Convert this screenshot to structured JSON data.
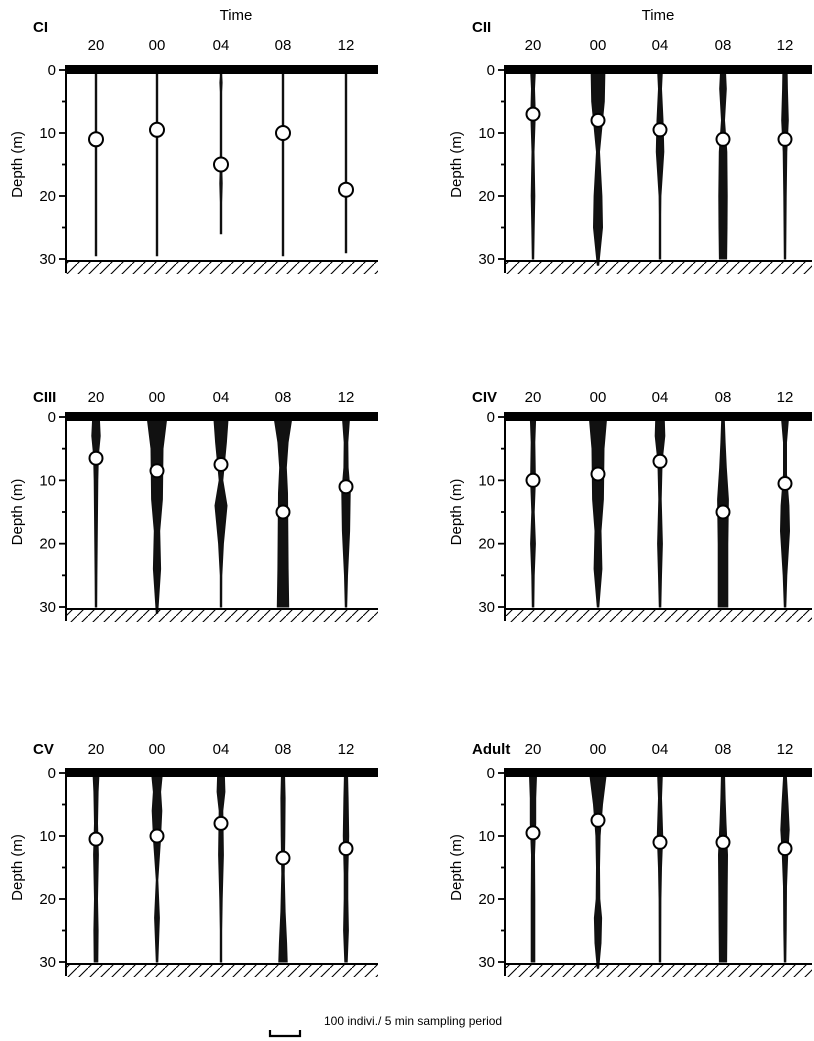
{
  "chart_data": {
    "type": "kite-diagram",
    "header": "Time",
    "time_labels": [
      "20",
      "00",
      "04",
      "08",
      "12"
    ],
    "ylabel": "Depth (m)",
    "yticks": [
      0,
      10,
      20,
      30
    ],
    "ylim": [
      0,
      30
    ],
    "scale_caption": "100 indivi./ 5 min sampling period",
    "scale_bar_individuals": 100,
    "colors": {
      "kite": "#111111",
      "mean_marker_fill": "#ffffff",
      "axis": "#000000"
    },
    "panels": [
      {
        "label": "CI",
        "show_time_header": true,
        "kites": [
          {
            "time": "20",
            "depth": [
              0,
              1,
              2,
              5,
              10,
              15,
              20,
              25,
              29.5
            ],
            "abundance": [
              3,
              2,
              2,
              3,
              3,
              3,
              3,
              3,
              3
            ],
            "mean_depth": 11
          },
          {
            "time": "00",
            "depth": [
              0,
              1,
              2,
              5,
              10,
              15,
              20,
              25,
              29.5
            ],
            "abundance": [
              3,
              2,
              2,
              3,
              3,
              3,
              3,
              3,
              3
            ],
            "mean_depth": 9.5
          },
          {
            "time": "04",
            "depth": [
              0,
              1,
              2,
              3.5,
              8,
              10,
              15,
              18,
              21,
              26
            ],
            "abundance": [
              4,
              5,
              7,
              1,
              1,
              2,
              3,
              8,
              3,
              1
            ],
            "mean_depth": 15
          },
          {
            "time": "08",
            "depth": [
              0,
              1,
              2,
              5,
              10,
              15,
              20,
              25,
              29.5
            ],
            "abundance": [
              3,
              2,
              2,
              3,
              3,
              3,
              3,
              3,
              3
            ],
            "mean_depth": 10
          },
          {
            "time": "12",
            "depth": [
              0,
              1,
              2,
              5,
              13,
              15,
              20,
              25,
              29
            ],
            "abundance": [
              3,
              2,
              2,
              2,
              2,
              3,
              3,
              3,
              2
            ],
            "mean_depth": 19
          }
        ]
      },
      {
        "label": "CII",
        "show_time_header": true,
        "kites": [
          {
            "time": "20",
            "depth": [
              0,
              3,
              7,
              13,
              20,
              25,
              30
            ],
            "abundance": [
              16,
              10,
              15,
              7,
              12,
              8,
              3
            ],
            "mean_depth": 7
          },
          {
            "time": "00",
            "depth": [
              0,
              5,
              13,
              20,
              25,
              31
            ],
            "abundance": [
              46,
              42,
              10,
              26,
              30,
              3
            ],
            "mean_depth": 8
          },
          {
            "time": "04",
            "depth": [
              0,
              3,
              8,
              13,
              20,
              23,
              30
            ],
            "abundance": [
              16,
              10,
              20,
              25,
              6,
              3,
              3
            ],
            "mean_depth": 9.5
          },
          {
            "time": "08",
            "depth": [
              0,
              3,
              8,
              13,
              20,
              25,
              30
            ],
            "abundance": [
              16,
              22,
              10,
              25,
              28,
              27,
              24
            ],
            "mean_depth": 11
          },
          {
            "time": "12",
            "depth": [
              0,
              3,
              8,
              13,
              20,
              30
            ],
            "abundance": [
              14,
              16,
              22,
              12,
              8,
              3
            ],
            "mean_depth": 11
          }
        ]
      },
      {
        "label": "CIII",
        "show_time_header": false,
        "kites": [
          {
            "time": "20",
            "depth": [
              0,
              3,
              6,
              10,
              15,
              20,
              25,
              30
            ],
            "abundance": [
              22,
              28,
              16,
              12,
              10,
              8,
              6,
              3
            ],
            "mean_depth": 6.5
          },
          {
            "time": "00",
            "depth": [
              0,
              5,
              13,
              18,
              24,
              31
            ],
            "abundance": [
              66,
              40,
              36,
              18,
              24,
              3
            ],
            "mean_depth": 8.5
          },
          {
            "time": "04",
            "depth": [
              0,
              4,
              10,
              14,
              20,
              25,
              30
            ],
            "abundance": [
              48,
              36,
              12,
              40,
              16,
              5,
              3
            ],
            "mean_depth": 7.5
          },
          {
            "time": "08",
            "depth": [
              0,
              4,
              8,
              12,
              18,
              24,
              30
            ],
            "abundance": [
              60,
              34,
              22,
              30,
              32,
              34,
              38
            ],
            "mean_depth": 15
          },
          {
            "time": "12",
            "depth": [
              0,
              4,
              8,
              12,
              18,
              25,
              30
            ],
            "abundance": [
              24,
              12,
              14,
              28,
              24,
              10,
              3
            ],
            "mean_depth": 11
          }
        ]
      },
      {
        "label": "CIV",
        "show_time_header": false,
        "kites": [
          {
            "time": "20",
            "depth": [
              0,
              4,
              10,
              15,
              20,
              25,
              30
            ],
            "abundance": [
              18,
              12,
              16,
              8,
              16,
              8,
              5
            ],
            "mean_depth": 10
          },
          {
            "time": "00",
            "depth": [
              0,
              5,
              13,
              18,
              24,
              30
            ],
            "abundance": [
              58,
              40,
              36,
              20,
              26,
              5
            ],
            "mean_depth": 9
          },
          {
            "time": "04",
            "depth": [
              0,
              3,
              7,
              13,
              20,
              25,
              30
            ],
            "abundance": [
              28,
              32,
              14,
              8,
              16,
              10,
              5
            ],
            "mean_depth": 7
          },
          {
            "time": "08",
            "depth": [
              0,
              4,
              8,
              13,
              20,
              25,
              30
            ],
            "abundance": [
              8,
              14,
              22,
              36,
              32,
              32,
              32
            ],
            "mean_depth": 15
          },
          {
            "time": "12",
            "depth": [
              0,
              4,
              9,
              14,
              18,
              25,
              30
            ],
            "abundance": [
              24,
              10,
              10,
              26,
              30,
              12,
              5
            ],
            "mean_depth": 10.5
          }
        ]
      },
      {
        "label": "CV",
        "show_time_header": true,
        "kites": [
          {
            "time": "20",
            "depth": [
              0,
              3,
              8,
              13,
              20,
              25,
              30
            ],
            "abundance": [
              20,
              14,
              10,
              16,
              10,
              14,
              12
            ],
            "mean_depth": 10.5
          },
          {
            "time": "00",
            "depth": [
              0,
              3,
              6,
              11,
              17,
              23,
              30
            ],
            "abundance": [
              36,
              24,
              32,
              22,
              5,
              16,
              5
            ],
            "mean_depth": 10
          },
          {
            "time": "04",
            "depth": [
              0,
              3,
              6,
              13,
              20,
              25,
              30
            ],
            "abundance": [
              22,
              26,
              12,
              16,
              8,
              4,
              3
            ],
            "mean_depth": 8
          },
          {
            "time": "08",
            "depth": [
              0,
              4,
              10,
              16,
              22,
              27,
              30
            ],
            "abundance": [
              10,
              14,
              12,
              8,
              14,
              24,
              28
            ],
            "mean_depth": 13.5
          },
          {
            "time": "12",
            "depth": [
              0,
              4,
              10,
              16,
              20,
              25,
              30
            ],
            "abundance": [
              10,
              14,
              18,
              12,
              12,
              16,
              8
            ],
            "mean_depth": 12
          }
        ]
      },
      {
        "label": "Adult",
        "show_time_header": true,
        "kites": [
          {
            "time": "20",
            "depth": [
              0,
              4,
              8,
              13,
              20,
              25,
              30
            ],
            "abundance": [
              24,
              18,
              18,
              10,
              12,
              12,
              12
            ],
            "mean_depth": 9.5
          },
          {
            "time": "00",
            "depth": [
              0,
              5,
              10,
              15,
              20,
              23,
              27,
              31
            ],
            "abundance": [
              56,
              30,
              14,
              10,
              12,
              24,
              20,
              3
            ],
            "mean_depth": 7.5
          },
          {
            "time": "04",
            "depth": [
              0,
              4,
              10,
              15,
              20,
              30
            ],
            "abundance": [
              16,
              10,
              18,
              10,
              6,
              3
            ],
            "mean_depth": 11
          },
          {
            "time": "08",
            "depth": [
              0,
              4,
              8,
              13,
              18,
              25,
              30
            ],
            "abundance": [
              10,
              14,
              20,
              30,
              28,
              26,
              24
            ],
            "mean_depth": 11
          },
          {
            "time": "12",
            "depth": [
              0,
              5,
              9,
              13,
              18,
              25,
              30
            ],
            "abundance": [
              8,
              20,
              28,
              18,
              10,
              8,
              5
            ],
            "mean_depth": 12
          }
        ]
      }
    ]
  }
}
